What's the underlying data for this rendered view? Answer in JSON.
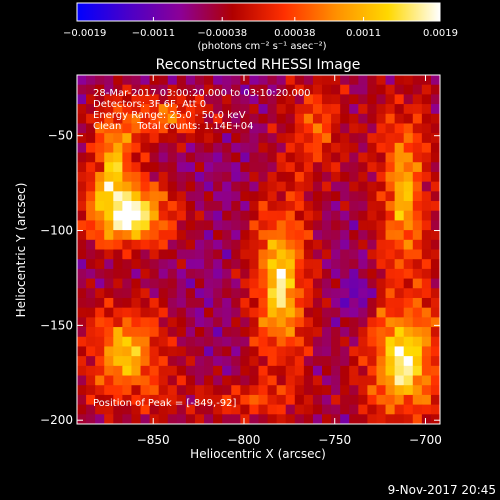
{
  "chart_data": {
    "type": "heatmap",
    "title": "Reconstructed RHESSI Image",
    "xlabel": "Heliocentric X (arcsec)",
    "ylabel": "Heliocentric Y (arcsec)",
    "xlim": [
      -892,
      -692
    ],
    "ylim": [
      -202,
      -18
    ],
    "xticks": [
      -850,
      -800,
      -750,
      -700
    ],
    "xtick_labels": [
      "−850",
      "−800",
      "−750",
      "−700"
    ],
    "yticks": [
      -50,
      -100,
      -150,
      -200
    ],
    "ytick_labels": [
      "−50",
      "−100",
      "−150",
      "−200"
    ],
    "colorbar": {
      "min": -0.0019,
      "max": 0.0019,
      "ticks": [
        -0.0019,
        -0.0011,
        -0.00038,
        0.00038,
        0.0011,
        0.0019
      ],
      "tick_labels": [
        "−0.0019",
        "−0.0011",
        "−0.00038",
        "0.00038",
        "0.0011",
        "0.0019"
      ],
      "unit_label": "(photons cm⁻² s⁻¹ asec⁻²)",
      "stops": [
        "#0000ff",
        "#4b00c8",
        "#8c0096",
        "#b00000",
        "#ff3000",
        "#ff9000",
        "#ffd800",
        "#ffffff"
      ]
    },
    "image_cells": [
      40,
      36
    ],
    "peak": [
      -849,
      -92
    ],
    "emission_sources": [
      {
        "x": -862,
        "y": -92,
        "sx": 18,
        "sy": 12,
        "amp": 1.0
      },
      {
        "x": -872,
        "y": -65,
        "sx": 10,
        "sy": 20,
        "amp": 0.7
      },
      {
        "x": -842,
        "y": -40,
        "sx": 22,
        "sy": 10,
        "amp": 0.5
      },
      {
        "x": -780,
        "y": -128,
        "sx": 12,
        "sy": 32,
        "amp": 0.9
      },
      {
        "x": -760,
        "y": -45,
        "sx": 14,
        "sy": 22,
        "amp": 0.45
      },
      {
        "x": -712,
        "y": -80,
        "sx": 12,
        "sy": 38,
        "amp": 0.7
      },
      {
        "x": -712,
        "y": -170,
        "sx": 16,
        "sy": 22,
        "amp": 0.95
      },
      {
        "x": -865,
        "y": -165,
        "sx": 18,
        "sy": 20,
        "amp": 0.75
      },
      {
        "x": -800,
        "y": -190,
        "sx": 30,
        "sy": 8,
        "amp": 0.35
      },
      {
        "x": -735,
        "y": -135,
        "sx": 8,
        "sy": 8,
        "amp": -0.3
      }
    ]
  },
  "annotations": {
    "time_range": "28-Mar-2017 03:00:20.000 to 03:10:20.000",
    "detectors": "Detectors: 3F 6F, Att 0",
    "energy_range": "Energy Range: 25.0 - 50.0 keV",
    "clean": "Clean     Total counts: 1.14E+04",
    "peak_position": "Position of Peak = [-849,-92]"
  },
  "footer": {
    "timestamp": "9-Nov-2017 20:45"
  }
}
